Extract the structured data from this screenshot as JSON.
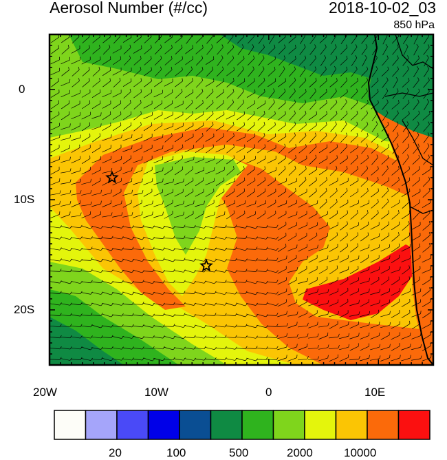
{
  "header": {
    "title": "Aerosol Number (#/cc)",
    "datetime": "2018-10-02_03",
    "level": "850 hPa"
  },
  "axes": {
    "x_ticks": [
      "20W",
      "10W",
      "0",
      "10E"
    ],
    "y_ticks": [
      "0",
      "10S",
      "20S"
    ],
    "lon_range": [
      -20,
      15
    ],
    "lat_range": [
      -25,
      5
    ]
  },
  "markers": [
    {
      "name": "star-marker-west",
      "lon": -14.3,
      "lat": -8.0
    },
    {
      "name": "star-marker-south",
      "lon": -5.7,
      "lat": -16.0
    }
  ],
  "colorbar": {
    "colors": [
      "#fdfdf8",
      "#a5a5fa",
      "#4a4af7",
      "#0000e8",
      "#0a4e93",
      "#0f8a43",
      "#2fb31e",
      "#7fd51c",
      "#e4f50c",
      "#fbc504",
      "#fb6a0a",
      "#fb1010"
    ],
    "labels": [
      "20",
      "100",
      "500",
      "2000",
      "10000"
    ]
  },
  "field_colors": {
    "darkgreen": "#0f8a43",
    "green": "#2fb31e",
    "lightgreen": "#7fd51c",
    "yellow": "#e4f50c",
    "gold": "#fbc504",
    "orange": "#fb6a0a",
    "red": "#fb1010",
    "coast": "#000000"
  }
}
